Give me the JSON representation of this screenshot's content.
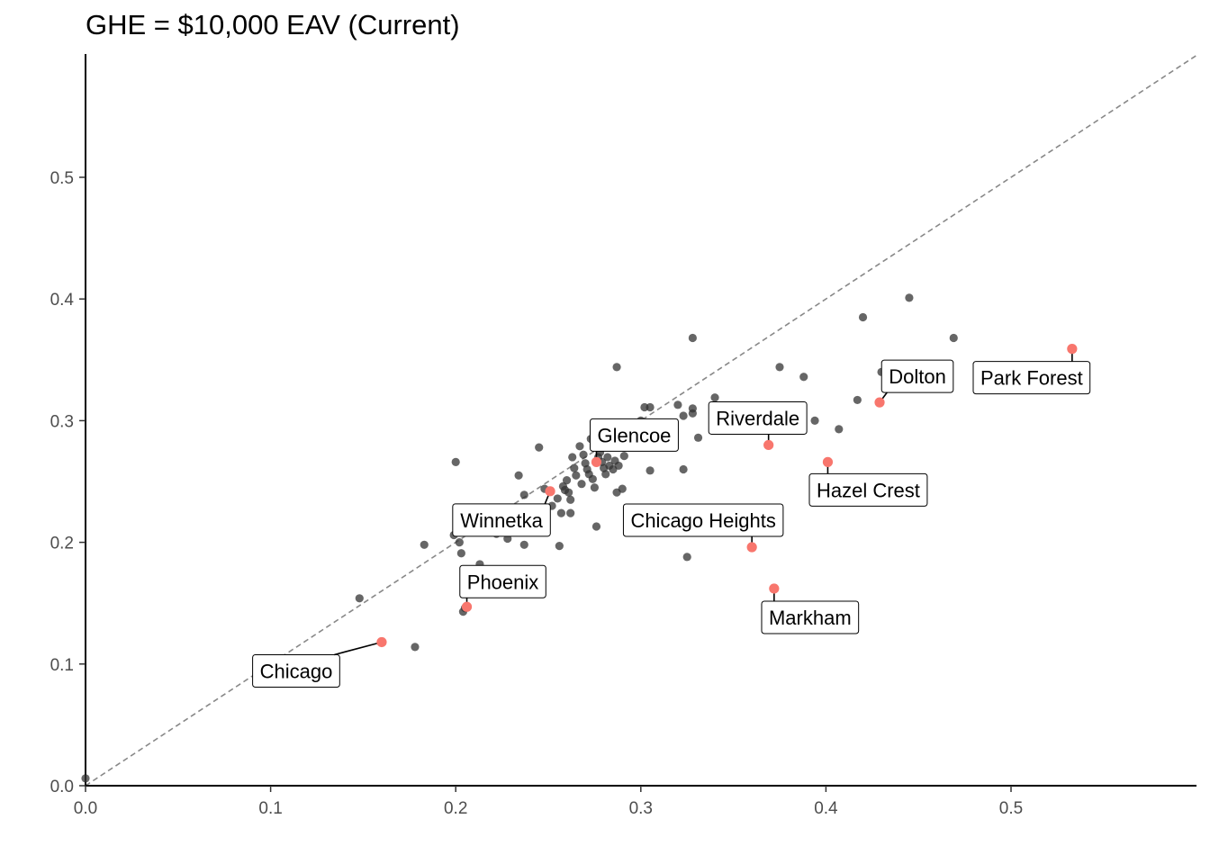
{
  "chart_data": {
    "type": "scatter",
    "title": "GHE = $10,000 EAV (Current)",
    "xlabel": "",
    "ylabel": "",
    "xlim": [
      0,
      0.6
    ],
    "ylim": [
      0,
      0.6
    ],
    "x_ticks": [
      "0.0",
      "0.1",
      "0.2",
      "0.3",
      "0.4",
      "0.5"
    ],
    "y_ticks": [
      "0.0",
      "0.1",
      "0.2",
      "0.3",
      "0.4",
      "0.5"
    ],
    "grid": false,
    "reference_line": {
      "type": "identity",
      "style": "dashed",
      "color": "#888888"
    },
    "colors": {
      "points": "#333333",
      "highlight": "#F8766D",
      "axis": "#000000",
      "ticks": "#4d4d4d"
    },
    "points": [
      [
        0.0,
        0.006
      ],
      [
        0.148,
        0.154
      ],
      [
        0.178,
        0.114
      ],
      [
        0.183,
        0.198
      ],
      [
        0.2,
        0.266
      ],
      [
        0.199,
        0.206
      ],
      [
        0.202,
        0.2
      ],
      [
        0.203,
        0.191
      ],
      [
        0.204,
        0.143
      ],
      [
        0.205,
        0.146
      ],
      [
        0.213,
        0.182
      ],
      [
        0.22,
        0.213
      ],
      [
        0.222,
        0.207
      ],
      [
        0.228,
        0.203
      ],
      [
        0.237,
        0.198
      ],
      [
        0.234,
        0.255
      ],
      [
        0.237,
        0.239
      ],
      [
        0.245,
        0.278
      ],
      [
        0.248,
        0.244
      ],
      [
        0.252,
        0.23
      ],
      [
        0.255,
        0.236
      ],
      [
        0.256,
        0.197
      ],
      [
        0.257,
        0.224
      ],
      [
        0.258,
        0.246
      ],
      [
        0.259,
        0.243
      ],
      [
        0.26,
        0.251
      ],
      [
        0.261,
        0.241
      ],
      [
        0.262,
        0.235
      ],
      [
        0.262,
        0.224
      ],
      [
        0.263,
        0.27
      ],
      [
        0.264,
        0.261
      ],
      [
        0.265,
        0.255
      ],
      [
        0.267,
        0.279
      ],
      [
        0.268,
        0.248
      ],
      [
        0.269,
        0.272
      ],
      [
        0.27,
        0.265
      ],
      [
        0.271,
        0.26
      ],
      [
        0.272,
        0.256
      ],
      [
        0.273,
        0.285
      ],
      [
        0.274,
        0.252
      ],
      [
        0.275,
        0.245
      ],
      [
        0.276,
        0.213
      ],
      [
        0.277,
        0.27
      ],
      [
        0.278,
        0.274
      ],
      [
        0.279,
        0.266
      ],
      [
        0.28,
        0.261
      ],
      [
        0.281,
        0.256
      ],
      [
        0.282,
        0.27
      ],
      [
        0.283,
        0.263
      ],
      [
        0.285,
        0.26
      ],
      [
        0.286,
        0.267
      ],
      [
        0.287,
        0.241
      ],
      [
        0.287,
        0.344
      ],
      [
        0.288,
        0.263
      ],
      [
        0.289,
        0.28
      ],
      [
        0.29,
        0.244
      ],
      [
        0.291,
        0.271
      ],
      [
        0.295,
        0.29
      ],
      [
        0.3,
        0.3
      ],
      [
        0.302,
        0.311
      ],
      [
        0.305,
        0.311
      ],
      [
        0.305,
        0.259
      ],
      [
        0.31,
        0.29
      ],
      [
        0.32,
        0.313
      ],
      [
        0.323,
        0.304
      ],
      [
        0.323,
        0.26
      ],
      [
        0.325,
        0.188
      ],
      [
        0.328,
        0.306
      ],
      [
        0.328,
        0.31
      ],
      [
        0.328,
        0.368
      ],
      [
        0.331,
        0.286
      ],
      [
        0.34,
        0.319
      ],
      [
        0.375,
        0.344
      ],
      [
        0.388,
        0.336
      ],
      [
        0.394,
        0.3
      ],
      [
        0.407,
        0.293
      ],
      [
        0.417,
        0.317
      ],
      [
        0.42,
        0.385
      ],
      [
        0.43,
        0.34
      ],
      [
        0.445,
        0.401
      ],
      [
        0.469,
        0.368
      ]
    ],
    "highlighted": [
      {
        "label": "Chicago",
        "x": 0.16,
        "y": 0.118
      },
      {
        "label": "Phoenix",
        "x": 0.206,
        "y": 0.147
      },
      {
        "label": "Winnetka",
        "x": 0.251,
        "y": 0.242
      },
      {
        "label": "Glencoe",
        "x": 0.276,
        "y": 0.266
      },
      {
        "label": "Chicago Heights",
        "x": 0.36,
        "y": 0.196
      },
      {
        "label": "Riverdale",
        "x": 0.369,
        "y": 0.28
      },
      {
        "label": "Markham",
        "x": 0.372,
        "y": 0.162
      },
      {
        "label": "Hazel Crest",
        "x": 0.401,
        "y": 0.266
      },
      {
        "label": "Dolton",
        "x": 0.429,
        "y": 0.315
      },
      {
        "label": "Park Forest",
        "x": 0.533,
        "y": 0.359
      }
    ]
  }
}
